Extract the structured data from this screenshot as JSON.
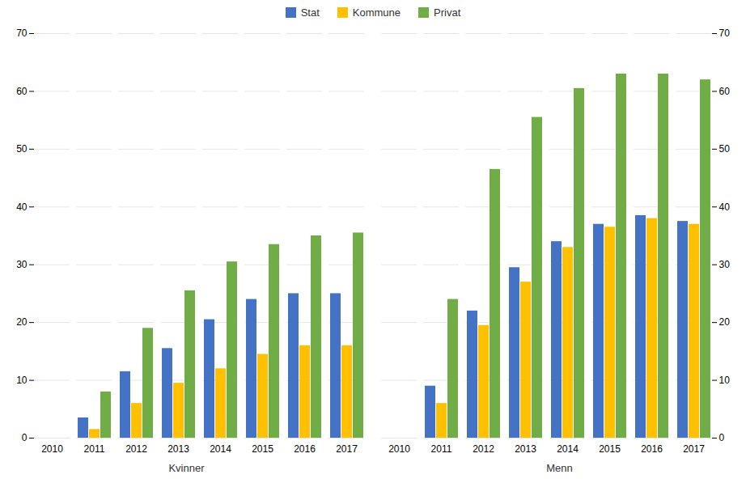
{
  "chart_data": [
    {
      "type": "bar",
      "xlabel": "Kvinner",
      "categories": [
        "2010",
        "2011",
        "2012",
        "2013",
        "2014",
        "2015",
        "2016",
        "2017"
      ],
      "series": [
        {
          "name": "Stat",
          "color": "#4472C4",
          "values": [
            0,
            3.5,
            11.5,
            15.5,
            20.5,
            24.0,
            25.0,
            25.0
          ]
        },
        {
          "name": "Kommune",
          "color": "#FFC000",
          "values": [
            0,
            1.5,
            6.0,
            9.5,
            12.0,
            14.5,
            16.0,
            16.0
          ]
        },
        {
          "name": "Privat",
          "color": "#70AD47",
          "values": [
            0,
            8.0,
            19.0,
            25.5,
            30.5,
            33.5,
            35.0,
            35.5
          ]
        }
      ],
      "ylim": [
        0,
        70
      ],
      "yticks": [
        0,
        10,
        20,
        30,
        40,
        50,
        60,
        70
      ],
      "grid": true,
      "legend": "top"
    },
    {
      "type": "bar",
      "xlabel": "Menn",
      "categories": [
        "2010",
        "2011",
        "2012",
        "2013",
        "2014",
        "2015",
        "2016",
        "2017"
      ],
      "series": [
        {
          "name": "Stat",
          "color": "#4472C4",
          "values": [
            0,
            9.0,
            22.0,
            29.5,
            34.0,
            37.0,
            38.5,
            37.5
          ]
        },
        {
          "name": "Kommune",
          "color": "#FFC000",
          "values": [
            0,
            6.0,
            19.5,
            27.0,
            33.0,
            36.5,
            38.0,
            37.0
          ]
        },
        {
          "name": "Privat",
          "color": "#70AD47",
          "values": [
            0,
            24.0,
            46.5,
            55.5,
            60.5,
            63.0,
            63.0,
            62.0
          ]
        }
      ],
      "ylim": [
        0,
        70
      ],
      "yticks": [
        0,
        10,
        20,
        30,
        40,
        50,
        60,
        70
      ],
      "grid": true,
      "legend": "top"
    }
  ]
}
